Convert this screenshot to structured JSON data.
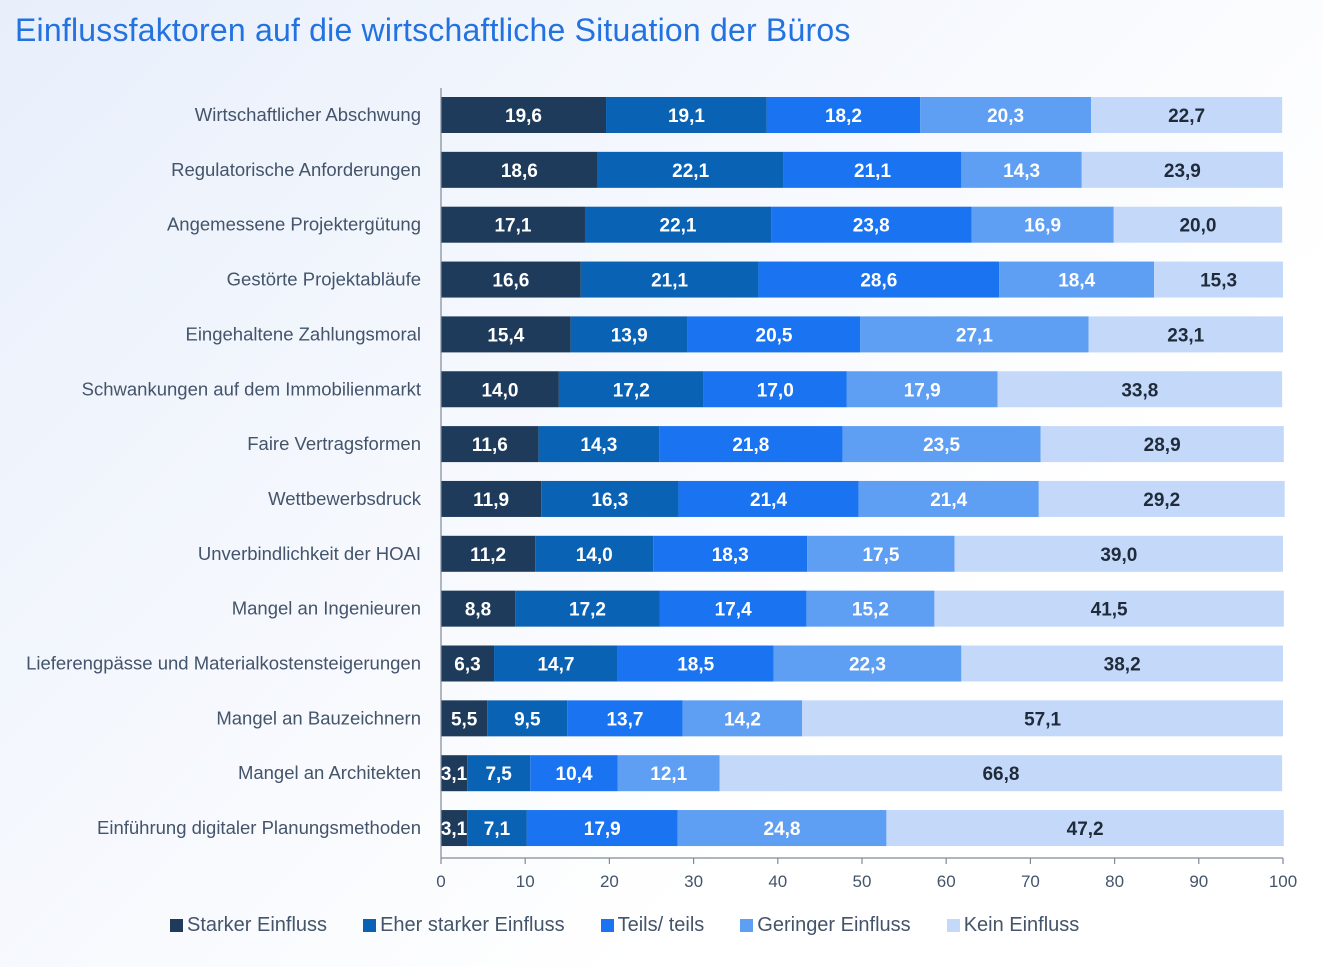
{
  "title": "Einflussfaktoren auf die wirtschaftliche Situation der Büros",
  "chart_data": {
    "type": "bar",
    "orientation": "horizontal",
    "stacked": true,
    "title": "Einflussfaktoren auf die wirtschaftliche Situation der Büros",
    "xlabel": "",
    "ylabel": "",
    "xlim": [
      0,
      100
    ],
    "xticks": [
      0,
      10,
      20,
      30,
      40,
      50,
      60,
      70,
      80,
      90,
      100
    ],
    "grid": false,
    "legend_position": "bottom",
    "categories": [
      "Wirtschaftlicher Abschwung",
      "Regulatorische Anforderungen",
      "Angemessene Projektergütung",
      "Gestörte Projektabläufe",
      "Eingehaltene Zahlungsmoral",
      "Schwankungen auf dem Immobilienmarkt",
      "Faire Vertragsformen",
      "Wettbewerbsdruck",
      "Unverbindlichkeit der HOAI",
      "Mangel an Ingenieuren",
      "Lieferengpässe und Materialkostensteigerungen",
      "Mangel an Bauzeichnern",
      "Mangel an Architekten",
      "Einführung digitaler Planungsmethoden"
    ],
    "series": [
      {
        "name": "Starker Einfluss",
        "color": "#1f3b5c",
        "label_color": "#ffffff",
        "values": [
          19.6,
          18.6,
          17.1,
          16.6,
          15.4,
          14.0,
          11.6,
          11.9,
          11.2,
          8.8,
          6.3,
          5.5,
          3.1,
          3.1
        ],
        "labels": [
          "19,6",
          "18,6",
          "17,1",
          "16,6",
          "15,4",
          "14,0",
          "11,6",
          "11,9",
          "11,2",
          "8,8",
          "6,3",
          "5,5",
          "3,1",
          "3,1"
        ]
      },
      {
        "name": "Eher starker Einfluss",
        "color": "#0a62b5",
        "label_color": "#ffffff",
        "values": [
          19.1,
          22.1,
          22.1,
          21.1,
          13.9,
          17.2,
          14.3,
          16.3,
          14.0,
          17.2,
          14.7,
          9.5,
          7.5,
          7.1
        ],
        "labels": [
          "19,1",
          "22,1",
          "22,1",
          "21,1",
          "13,9",
          "17,2",
          "14,3",
          "16,3",
          "14,0",
          "17,2",
          "14,7",
          "9,5",
          "7,5",
          "7,1"
        ]
      },
      {
        "name": "Teils/ teils",
        "color": "#1a73f0",
        "label_color": "#ffffff",
        "values": [
          18.2,
          21.1,
          23.8,
          28.6,
          20.5,
          17.0,
          21.8,
          21.4,
          18.3,
          17.4,
          18.5,
          13.7,
          10.4,
          17.9
        ],
        "labels": [
          "18,2",
          "21,1",
          "23,8",
          "28,6",
          "20,5",
          "17,0",
          "21,8",
          "21,4",
          "18,3",
          "17,4",
          "18,5",
          "13,7",
          "10,4",
          "17,9"
        ]
      },
      {
        "name": "Geringer Einfluss",
        "color": "#5e9ef3",
        "label_color": "#ffffff",
        "values": [
          20.3,
          14.3,
          16.9,
          18.4,
          27.1,
          17.9,
          23.5,
          21.4,
          17.5,
          15.2,
          22.3,
          14.2,
          12.1,
          24.8
        ],
        "labels": [
          "20,3",
          "14,3",
          "16,9",
          "18,4",
          "27,1",
          "17,9",
          "23,5",
          "21,4",
          "17,5",
          "15,2",
          "22,3",
          "14,2",
          "12,1",
          "24,8"
        ]
      },
      {
        "name": "Kein Einfluss",
        "color": "#c4d9fa",
        "label_color": "#1f2b3a",
        "values": [
          22.7,
          23.9,
          20.0,
          15.3,
          23.1,
          33.8,
          28.9,
          29.2,
          39.0,
          41.5,
          38.2,
          57.1,
          66.8,
          47.2
        ],
        "labels": [
          "22,7",
          "23,9",
          "20,0",
          "15,3",
          "23,1",
          "33,8",
          "28,9",
          "29,2",
          "39,0",
          "41,5",
          "38,2",
          "57,1",
          "66,8",
          "47,2"
        ]
      }
    ]
  }
}
